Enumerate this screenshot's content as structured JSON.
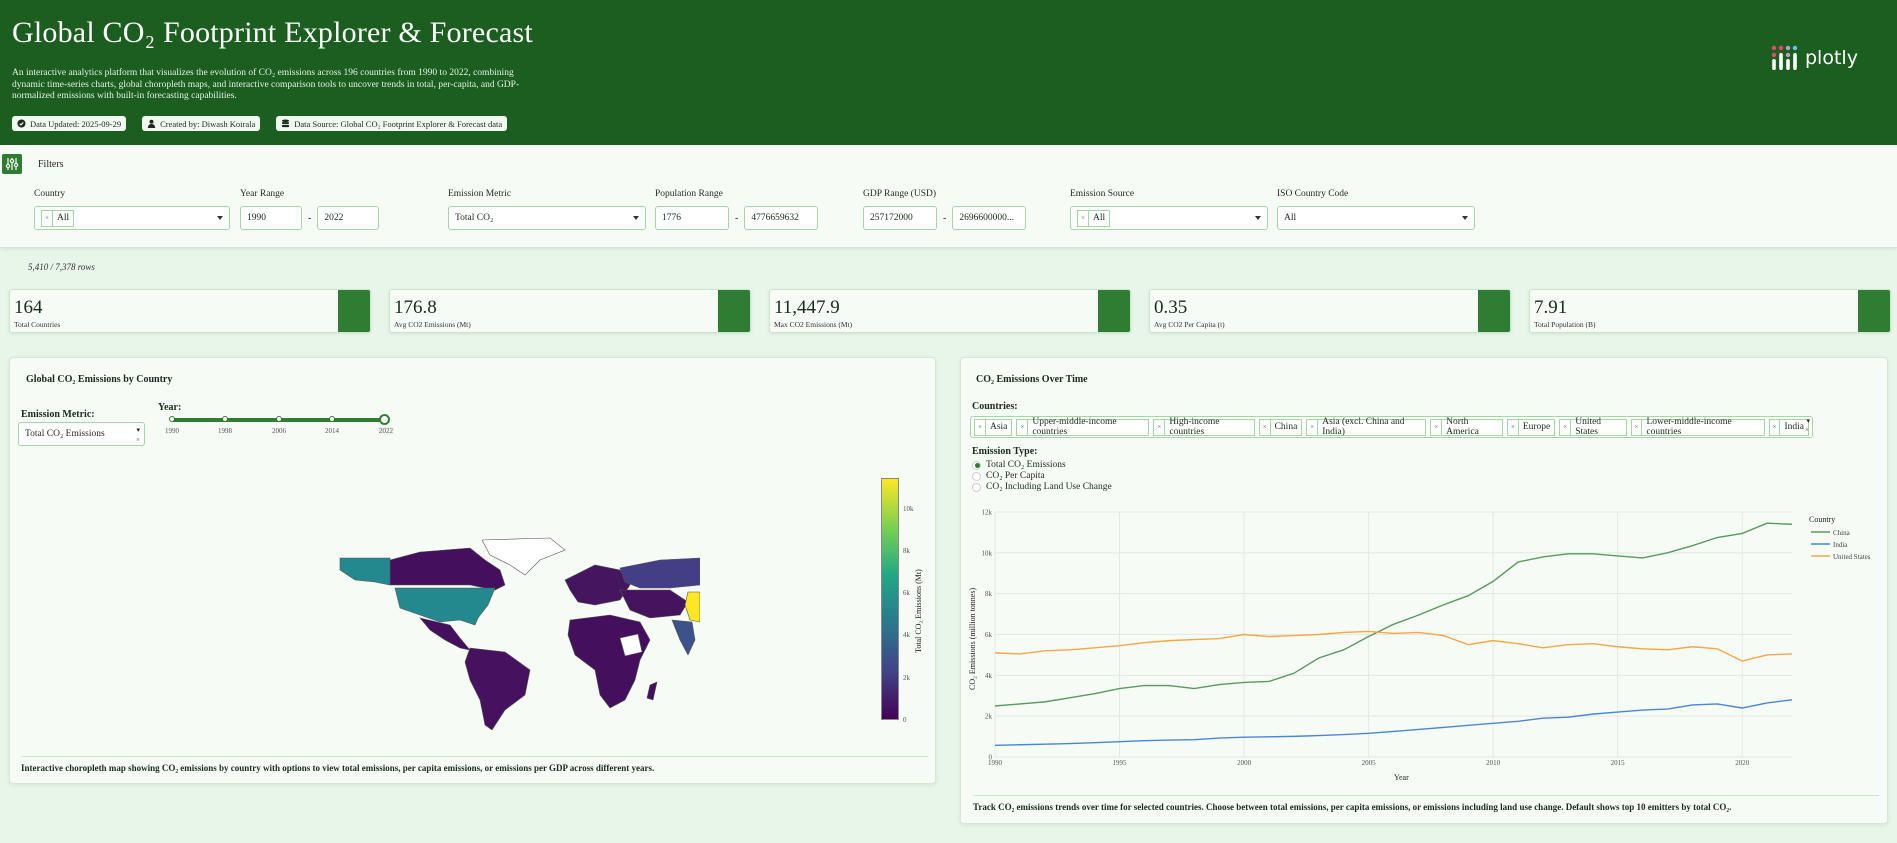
{
  "header": {
    "title": "Global CO₂ Footprint Explorer & Forecast",
    "description": "An interactive analytics platform that visualizes the evolution of CO₂ emissions across 196 countries from 1990 to 2022, combining dynamic time-series charts, global choropleth maps, and interactive comparison tools to uncover trends in total, per-capita, and GDP-normalized emissions with built-in forecasting capabilities.",
    "badges": [
      {
        "icon": "check-circle-icon",
        "label": "Data Updated: 2025-09-29"
      },
      {
        "icon": "user-icon",
        "label": "Created by: Diwash Koirala"
      },
      {
        "icon": "database-icon",
        "label": "Data Source: Global CO₂ Footprint Explorer & Forecast data"
      }
    ],
    "logo_text": "plotly"
  },
  "filters": {
    "title": "Filters",
    "country": {
      "label": "Country",
      "chip": "All"
    },
    "year_range": {
      "label": "Year Range",
      "min": "1990",
      "max": "2022"
    },
    "emission_metric": {
      "label": "Emission Metric",
      "value": "Total CO₂"
    },
    "population_range": {
      "label": "Population Range",
      "min": "1776",
      "max": "4776659632"
    },
    "gdp_range": {
      "label": "GDP Range (USD)",
      "min": "257172000",
      "max": "2696600000..."
    },
    "emission_source": {
      "label": "Emission Source",
      "chip": "All"
    },
    "iso_code": {
      "label": "ISO Country Code",
      "value": "All"
    }
  },
  "row_count": "5,410 / 7,378 rows",
  "kpis": [
    {
      "value": "164",
      "caption": "Total Countries"
    },
    {
      "value": "176.8",
      "caption": "Avg CO2 Emissions (Mt)"
    },
    {
      "value": "11,447.9",
      "caption": "Max CO2 Emissions (Mt)"
    },
    {
      "value": "0.35",
      "caption": "Avg CO2 Per Capita (t)"
    },
    {
      "value": "7.91",
      "caption": "Total Population (B)"
    }
  ],
  "map_panel": {
    "title": "Global CO₂ Emissions by Country",
    "metric_label": "Emission Metric:",
    "metric_value": "Total CO₂ Emissions",
    "year_label": "Year:",
    "year_marks": [
      "1990",
      "1998",
      "2006",
      "2014",
      "2022"
    ],
    "selected_year": "2022",
    "colorbar_title": "Total CO₂ Emissions (Mt)",
    "colorbar_ticks": [
      "0",
      "2k",
      "4k",
      "6k",
      "8k",
      "10k"
    ],
    "footer": "Interactive choropleth map showing CO₂ emissions by country with options to view total emissions, per capita emissions, or emissions per GDP across different years."
  },
  "time_panel": {
    "title": "CO₂ Emissions Over Time",
    "countries_label": "Countries:",
    "country_chips": [
      "Asia",
      "Upper-middle-income countries",
      "High-income countries",
      "China",
      "Asia (excl. China and India)",
      "North America",
      "Europe",
      "United States",
      "Lower-middle-income countries",
      "India"
    ],
    "emission_type_label": "Emission Type:",
    "emission_types": [
      {
        "label": "Total CO₂ Emissions",
        "selected": true
      },
      {
        "label": "CO₂ Per Capita",
        "selected": false
      },
      {
        "label": "CO₂ Including Land Use Change",
        "selected": false
      }
    ],
    "footer": "Track CO₂ emissions trends over time for selected countries. Choose between total emissions, per capita emissions, or emissions including land use change. Default shows top 10 emitters by total CO₂."
  },
  "colors": {
    "header_bg": "#1b5e20",
    "accent": "#2e7d32",
    "china": "#5a9a5e",
    "india": "#4a86d4",
    "united_states": "#f5a742"
  },
  "chart_data": [
    {
      "type": "line",
      "title": "CO₂ Emissions Over Time",
      "xlabel": "Year",
      "ylabel": "CO₂ Emissions (million tonnes)",
      "xlim": [
        1990,
        2022
      ],
      "ylim": [
        0,
        12000
      ],
      "x_ticks": [
        "1990",
        "1995",
        "2000",
        "2005",
        "2010",
        "2015",
        "2020"
      ],
      "y_ticks": [
        "0",
        "2k",
        "4k",
        "6k",
        "8k",
        "10k",
        "12k"
      ],
      "grid": true,
      "legend_title": "Country",
      "legend_position": "right",
      "x": [
        1990,
        1991,
        1992,
        1993,
        1994,
        1995,
        1996,
        1997,
        1998,
        1999,
        2000,
        2001,
        2002,
        2003,
        2004,
        2005,
        2006,
        2007,
        2008,
        2009,
        2010,
        2011,
        2012,
        2013,
        2014,
        2015,
        2016,
        2017,
        2018,
        2019,
        2020,
        2021,
        2022
      ],
      "series": [
        {
          "name": "China",
          "values": [
            2500,
            2600,
            2700,
            2900,
            3100,
            3350,
            3500,
            3500,
            3350,
            3550,
            3650,
            3700,
            4100,
            4850,
            5250,
            5900,
            6500,
            6950,
            7450,
            7900,
            8600,
            9550,
            9800,
            9950,
            9950,
            9850,
            9750,
            10000,
            10350,
            10750,
            10950,
            11450,
            11400
          ]
        },
        {
          "name": "India",
          "values": [
            570,
            600,
            630,
            660,
            700,
            750,
            800,
            830,
            850,
            930,
            970,
            990,
            1010,
            1050,
            1100,
            1160,
            1250,
            1350,
            1450,
            1550,
            1650,
            1750,
            1900,
            1950,
            2100,
            2200,
            2300,
            2350,
            2550,
            2600,
            2400,
            2650,
            2800
          ]
        },
        {
          "name": "United States",
          "values": [
            5100,
            5050,
            5200,
            5250,
            5350,
            5450,
            5600,
            5700,
            5750,
            5800,
            6000,
            5900,
            5950,
            6000,
            6100,
            6150,
            6050,
            6100,
            5950,
            5500,
            5700,
            5550,
            5350,
            5500,
            5550,
            5400,
            5300,
            5250,
            5400,
            5300,
            4700,
            5000,
            5050
          ]
        }
      ]
    },
    {
      "type": "heatmap",
      "subtype": "choropleth",
      "title": "Global CO₂ Emissions by Country",
      "year": 2022,
      "colorscale": "Viridis",
      "colorbar_title": "Total CO₂ Emissions (Mt)",
      "range": [
        0,
        11400
      ],
      "highlights": [
        {
          "country": "China",
          "value": 11400,
          "color": "#fde725"
        },
        {
          "country": "United States",
          "value": 5050,
          "color": "#21918c"
        },
        {
          "country": "India",
          "value": 2800,
          "color": "#3b528b"
        },
        {
          "country": "Russia",
          "value": 1700,
          "color": "#433e85"
        }
      ]
    }
  ]
}
